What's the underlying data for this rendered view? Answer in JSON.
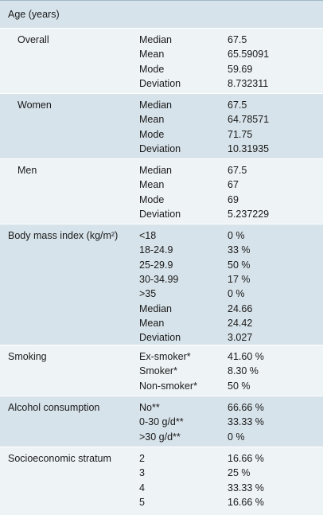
{
  "sections": [
    {
      "label": "Age (years)",
      "top": 0,
      "height": 34,
      "shade": true,
      "rows": []
    },
    {
      "label": "Overall",
      "indent": true,
      "shade": false,
      "rows": [
        {
          "category": "Median",
          "value": "67.5"
        },
        {
          "category": "Mean",
          "value": "65.59091"
        },
        {
          "category": "Mode",
          "value": "59.69"
        },
        {
          "category": "Deviation",
          "value": "8.732311"
        }
      ]
    },
    {
      "label": "Women",
      "indent": true,
      "shade": true,
      "rows": [
        {
          "category": "Median",
          "value": "67.5"
        },
        {
          "category": "Mean",
          "value": "64.78571"
        },
        {
          "category": "Mode",
          "value": "71.75"
        },
        {
          "category": "Deviation",
          "value": "10.31935"
        }
      ]
    },
    {
      "label": "Men",
      "indent": true,
      "shade": false,
      "rows": [
        {
          "category": "Median",
          "value": "67.5"
        },
        {
          "category": "Mean",
          "value": "67"
        },
        {
          "category": "Mode",
          "value": "69"
        },
        {
          "category": "Deviation",
          "value": "5.237229"
        }
      ]
    },
    {
      "label": "Body mass index (kg/m²)",
      "indent": false,
      "shade": true,
      "rows": [
        {
          "category": "<18",
          "value": "0 %"
        },
        {
          "category": "18-24.9",
          "value": "33 %"
        },
        {
          "category": "25-29.9",
          "value": "50 %"
        },
        {
          "category": "30-34.99",
          "value": "17 %"
        },
        {
          "category": ">35",
          "value": "0 %"
        },
        {
          "category": "Median",
          "value": "24.66"
        },
        {
          "category": "Mean",
          "value": "24.42"
        },
        {
          "category": "Deviation",
          "value": "3.027"
        }
      ]
    },
    {
      "label": "Smoking",
      "indent": false,
      "shade": false,
      "rows": [
        {
          "category": "Ex-smoker*",
          "value": "41.60 %"
        },
        {
          "category": "Smoker*",
          "value": "8.30 %"
        },
        {
          "category": "Non-smoker*",
          "value": "50 %"
        }
      ]
    },
    {
      "label": "Alcohol consumption",
      "indent": false,
      "shade": true,
      "rows": [
        {
          "category": "No**",
          "value": "66.66 %"
        },
        {
          "category": "0-30 g/d**",
          "value": "33.33 %"
        },
        {
          "category": ">30 g/d**",
          "value": "0 %"
        }
      ]
    },
    {
      "label": "Socioeconomic stratum",
      "indent": false,
      "shade": false,
      "rows": [
        {
          "category": "2",
          "value": "16.66 %"
        },
        {
          "category": "3",
          "value": "25 %"
        },
        {
          "category": "4",
          "value": "33.33 %"
        },
        {
          "category": "5",
          "value": "16.66 %"
        }
      ]
    }
  ]
}
